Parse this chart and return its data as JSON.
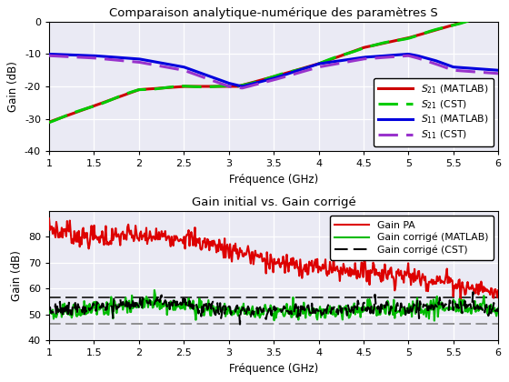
{
  "title1": "Comparaison analytique-numérique des paramètres S",
  "title2": "Gain initial vs. Gain corrigé",
  "xlabel": "Fréquence (GHz)",
  "ylabel": "Gain (dB)",
  "xlim": [
    1,
    6
  ],
  "ylim1": [
    -40,
    0
  ],
  "ylim2": [
    40,
    90
  ],
  "yticks1": [
    -40,
    -30,
    -20,
    -10,
    0
  ],
  "yticks2": [
    40,
    50,
    60,
    70,
    80
  ],
  "xticks": [
    1,
    1.5,
    2,
    2.5,
    3,
    3.5,
    4,
    4.5,
    5,
    5.5,
    6
  ],
  "hline_upper": 56.5,
  "hline_lower": 46.5,
  "bg_color": "#eaeaf4",
  "grid_color": "#ffffff",
  "fig_color": "#ffffff",
  "colors1": [
    "#cc0000",
    "#00cc00",
    "#0000dd",
    "#9933cc"
  ],
  "colors2": [
    "#dd0000",
    "#00bb00",
    "#000000"
  ],
  "s21_x": [
    1,
    1.5,
    2,
    2.5,
    3,
    3.1,
    3.5,
    4,
    4.5,
    5,
    5.5,
    6
  ],
  "s21_y": [
    -31,
    -26,
    -21,
    -20,
    -20,
    -20,
    -17,
    -13,
    -8,
    -5,
    -1,
    3
  ],
  "s11_x": [
    1,
    1.2,
    1.5,
    2,
    2.5,
    3,
    3.15,
    3.5,
    4,
    4.5,
    5,
    5.1,
    5.3,
    5.5,
    6
  ],
  "s11_y": [
    -10,
    -10.2,
    -10.5,
    -11.5,
    -14,
    -19,
    -20,
    -17.5,
    -13,
    -11,
    -10,
    -10.5,
    -12,
    -14,
    -15
  ],
  "s11_cst_y": [
    -10.5,
    -10.8,
    -11.2,
    -12.5,
    -15,
    -20,
    -20.5,
    -18,
    -14,
    -11.5,
    -10.5,
    -11.2,
    -13,
    -15,
    -16
  ],
  "gain_pa_x": [
    1,
    1.1,
    1.2,
    1.3,
    1.5,
    2,
    2.5,
    3,
    3.5,
    4,
    4.5,
    5,
    5.5,
    6
  ],
  "gain_pa_y": [
    84,
    82,
    83,
    80,
    80,
    80,
    80,
    75,
    70,
    68,
    67,
    65,
    62,
    58
  ],
  "gain_corr_x": [
    1,
    1.5,
    2,
    2.5,
    3,
    3.5,
    4,
    4.5,
    5,
    5.5,
    6
  ],
  "gain_corr_y": [
    51,
    52,
    54,
    54,
    51,
    51,
    51,
    52,
    52,
    53,
    52
  ],
  "gain_cst_y": [
    51.5,
    52.5,
    54.5,
    54.5,
    51.5,
    51.5,
    51.5,
    52.5,
    52.5,
    53.5,
    52.5
  ]
}
